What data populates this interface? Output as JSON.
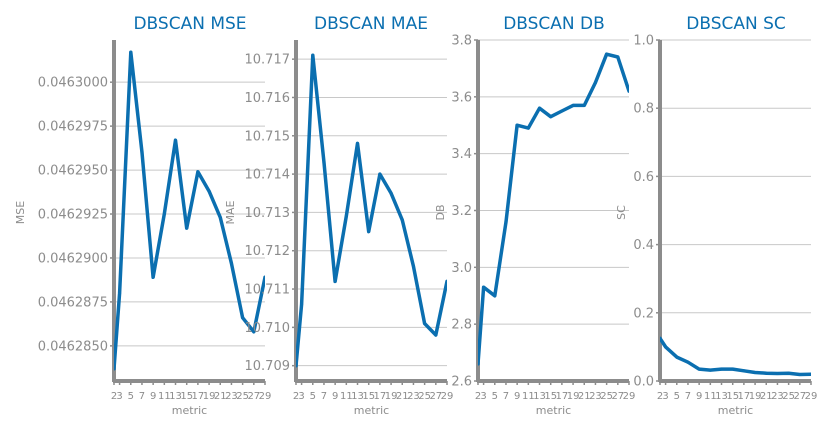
{
  "chart_data": [
    {
      "type": "line",
      "title": "DBSCAN MSE",
      "xlabel": "metric",
      "ylabel": "MSE",
      "x": [
        2,
        3,
        5,
        7,
        9,
        11,
        13,
        15,
        17,
        19,
        21,
        23,
        25,
        27,
        29
      ],
      "x_ticks": [
        "2",
        "3",
        "5",
        "7",
        "9",
        "11",
        "13",
        "15",
        "17",
        "19",
        "21",
        "23",
        "25",
        "27",
        "29"
      ],
      "values": [
        0.0462837,
        0.046288,
        0.0463017,
        0.046296,
        0.0462889,
        0.0462925,
        0.0462967,
        0.0462917,
        0.0462949,
        0.0462938,
        0.0462923,
        0.0462897,
        0.0462866,
        0.0462858,
        0.0462889
      ],
      "y_ticks": [
        "0.0462850",
        "0.0462875",
        "0.0462900",
        "0.0462925",
        "0.0462950",
        "0.0462975",
        "0.0463000"
      ],
      "y_tick_values": [
        0.046285,
        0.0462875,
        0.04629,
        0.0462925,
        0.046295,
        0.0462975,
        0.0463
      ],
      "ylim": [
        0.046283,
        0.0463024
      ],
      "xlim": [
        2,
        29
      ],
      "grid": true,
      "color": "#0b6fb0"
    },
    {
      "type": "line",
      "title": "DBSCAN MAE",
      "xlabel": "metric",
      "ylabel": "MAE",
      "x": [
        2,
        3,
        5,
        7,
        9,
        11,
        13,
        15,
        17,
        19,
        21,
        23,
        25,
        27,
        29
      ],
      "x_ticks": [
        "2",
        "3",
        "5",
        "7",
        "9",
        "11",
        "13",
        "15",
        "17",
        "19",
        "21",
        "23",
        "25",
        "27",
        "29"
      ],
      "values": [
        10.709,
        10.7106,
        10.7171,
        10.7143,
        10.7112,
        10.7129,
        10.7148,
        10.7125,
        10.714,
        10.7135,
        10.7128,
        10.7116,
        10.7101,
        10.7098,
        10.7112
      ],
      "y_ticks": [
        "10.709",
        "10.710",
        "10.711",
        "10.712",
        "10.713",
        "10.714",
        "10.715",
        "10.716",
        "10.717"
      ],
      "y_tick_values": [
        10.709,
        10.71,
        10.711,
        10.712,
        10.713,
        10.714,
        10.715,
        10.716,
        10.717
      ],
      "ylim": [
        10.7086,
        10.7175
      ],
      "xlim": [
        2,
        29
      ],
      "grid": true,
      "color": "#0b6fb0"
    },
    {
      "type": "line",
      "title": "DBSCAN DB",
      "xlabel": "metric",
      "ylabel": "DB",
      "x": [
        2,
        3,
        5,
        7,
        9,
        11,
        13,
        15,
        17,
        19,
        21,
        23,
        25,
        27,
        29
      ],
      "x_ticks": [
        "2",
        "3",
        "5",
        "7",
        "9",
        "11",
        "13",
        "15",
        "17",
        "19",
        "21",
        "23",
        "25",
        "27",
        "29"
      ],
      "values": [
        2.66,
        2.93,
        2.9,
        3.16,
        3.5,
        3.49,
        3.56,
        3.53,
        3.55,
        3.57,
        3.57,
        3.65,
        3.75,
        3.74,
        3.62
      ],
      "y_ticks": [
        "2.6",
        "2.8",
        "3.0",
        "3.2",
        "3.4",
        "3.6",
        "3.8"
      ],
      "y_tick_values": [
        2.6,
        2.8,
        3.0,
        3.2,
        3.4,
        3.6,
        3.8
      ],
      "ylim": [
        2.6,
        3.8
      ],
      "xlim": [
        2,
        29
      ],
      "grid": true,
      "color": "#0b6fb0"
    },
    {
      "type": "line",
      "title": "DBSCAN SC",
      "xlabel": "metric",
      "ylabel": "SC",
      "x": [
        2,
        3,
        5,
        7,
        9,
        11,
        13,
        15,
        17,
        19,
        21,
        23,
        25,
        27,
        29
      ],
      "x_ticks": [
        "2",
        "3",
        "5",
        "7",
        "9",
        "11",
        "13",
        "15",
        "17",
        "19",
        "21",
        "23",
        "25",
        "27",
        "29"
      ],
      "values": [
        0.125,
        0.1,
        0.07,
        0.055,
        0.035,
        0.032,
        0.035,
        0.035,
        0.03,
        0.025,
        0.023,
        0.022,
        0.023,
        0.019,
        0.02
      ],
      "y_ticks": [
        "0.0",
        "0.2",
        "0.4",
        "0.6",
        "0.8",
        "1.0"
      ],
      "y_tick_values": [
        0.0,
        0.2,
        0.4,
        0.6,
        0.8,
        1.0
      ],
      "ylim": [
        0.0,
        1.0
      ],
      "xlim": [
        2,
        29
      ],
      "grid": true,
      "color": "#0b6fb0"
    }
  ],
  "colors": {
    "line": "#0b6fb0",
    "title": "#0b6fb0",
    "axis": "#8c8c8c",
    "grid": "#c8c8c8",
    "tick_text": "#8c8c8c"
  }
}
